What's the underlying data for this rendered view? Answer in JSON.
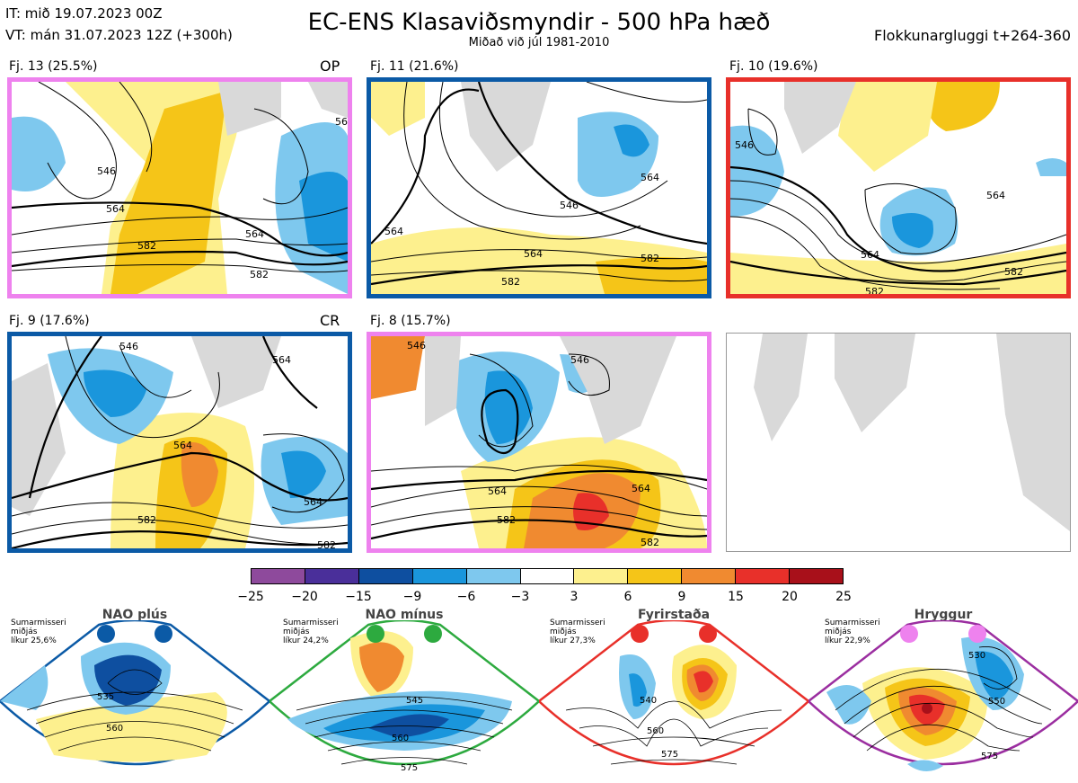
{
  "header": {
    "it_line": "IT: mið 19.07.2023 00Z",
    "vt_line": "VT: mán 31.07.2023 12Z  (+300h)",
    "title": "EC-ENS Klasaviðsmyndir - 500 hPa hæð",
    "subtitle": "Miðað við júl 1981-2010",
    "window": "Flokkunargluggi t+264-360"
  },
  "panels": [
    {
      "label": "Fj. 13 (25.5%)",
      "tag": "OP",
      "border": "#ee82ee",
      "contours": [
        "546",
        "564",
        "564",
        "582",
        "582",
        "56"
      ]
    },
    {
      "label": "Fj. 11 (21.6%)",
      "tag": "",
      "border": "#0b5aa6",
      "contours": [
        "546",
        "564",
        "564",
        "582",
        "582",
        "564"
      ]
    },
    {
      "label": "Fj. 10 (19.6%)",
      "tag": "",
      "border": "#e8302a",
      "contours": [
        "546",
        "564",
        "564",
        "582",
        "582"
      ]
    },
    {
      "label": "Fj. 9 (17.6%)",
      "tag": "CR",
      "border": "#0b5aa6",
      "contours": [
        "564",
        "564",
        "546",
        "564",
        "582",
        "582"
      ]
    },
    {
      "label": "Fj. 8 (15.7%)",
      "tag": "",
      "border": "#ee82ee",
      "contours": [
        "546",
        "546",
        "564",
        "564",
        "582",
        "582"
      ]
    }
  ],
  "colorbar": {
    "ticks": [
      "−25",
      "−20",
      "−15",
      "−9",
      "−6",
      "−3",
      "3",
      "6",
      "9",
      "15",
      "20",
      "25"
    ],
    "colors": [
      "#8e4a9c",
      "#4a2f9a",
      "#0e4fa0",
      "#1a96dc",
      "#7ec8ee",
      "#ffffff",
      "#fdf08e",
      "#f5c518",
      "#f08a30",
      "#e8302a",
      "#a8101a"
    ]
  },
  "regimes": [
    {
      "name": "NAO plús",
      "note": [
        "Sumarmisseri",
        "miðjás",
        "líkur 25,6%"
      ],
      "color": "#0b5aa6",
      "contours": [
        "535",
        "560"
      ]
    },
    {
      "name": "NAO mínus",
      "note": [
        "Sumarmisseri",
        "miðjás",
        "líkur 24,2%"
      ],
      "color": "#2daa3f",
      "contours": [
        "545",
        "560",
        "575"
      ]
    },
    {
      "name": "Fyrirstaða",
      "note": [
        "Sumarmisseri",
        "miðjás",
        "líkur 27,3%"
      ],
      "color": "#e8302a",
      "contours": [
        "540",
        "560",
        "575"
      ]
    },
    {
      "name": "Hryggur",
      "note": [
        "Sumarmisseri",
        "miðjás",
        "líkur 22,9%"
      ],
      "color": "#9b2ea0",
      "contours": [
        "530",
        "550",
        "575"
      ]
    }
  ]
}
